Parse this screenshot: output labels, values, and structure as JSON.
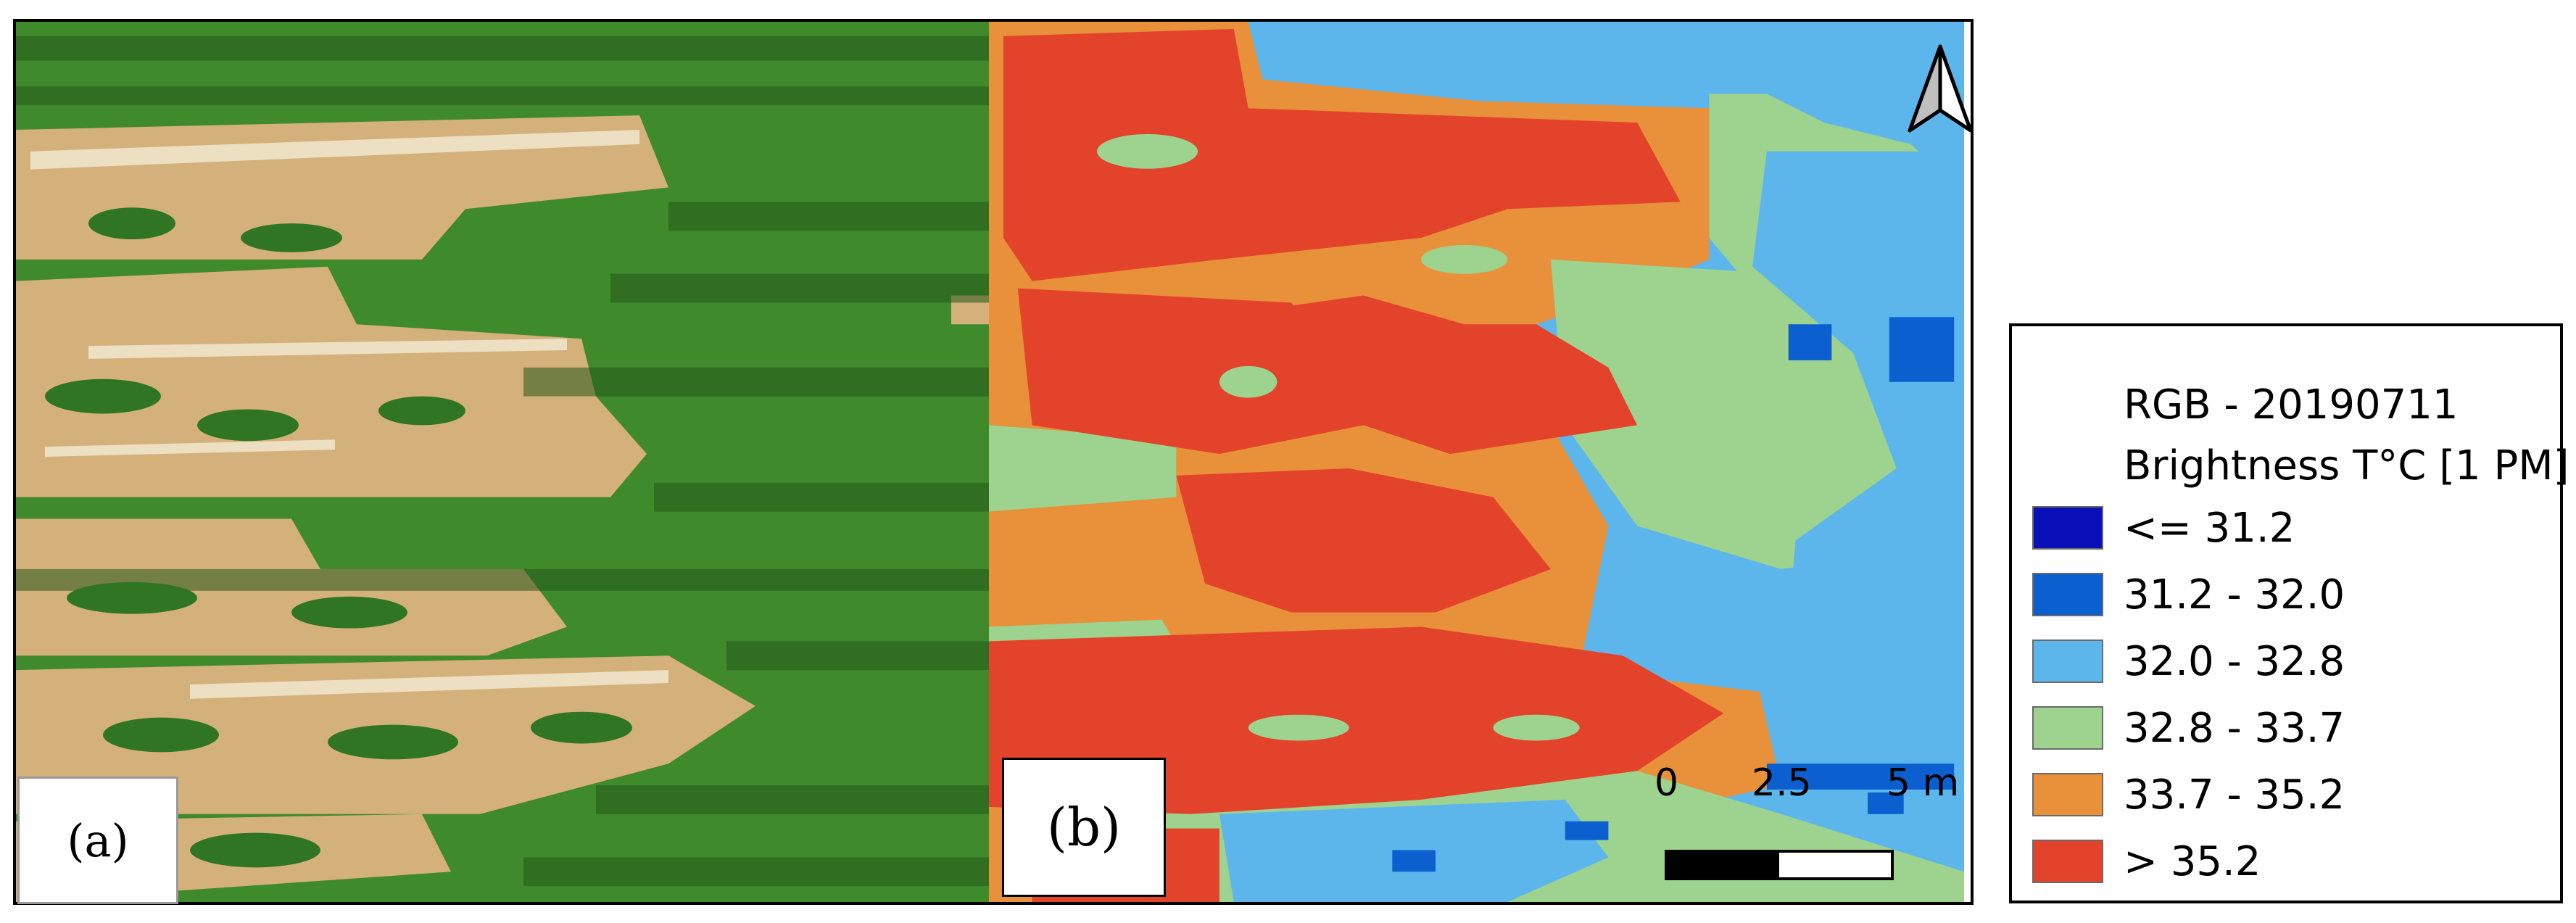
{
  "panels": {
    "a": {
      "label": "(a)"
    },
    "b": {
      "label": "(b)"
    }
  },
  "scalebar": {
    "ticks": [
      "0",
      "2.5",
      "5 m"
    ]
  },
  "legend": {
    "title_line1": "RGB - 20190711",
    "title_line2": "Brightness T°C [1 PM]",
    "classes": [
      {
        "label": "<= 31.2",
        "color": "#0a10b8"
      },
      {
        "label": "31.2 - 32.0",
        "color": "#0b5fce"
      },
      {
        "label": "32.0 - 32.8",
        "color": "#5cb6eb"
      },
      {
        "label": "32.8 - 33.7",
        "color": "#9dd38f"
      },
      {
        "label": "33.7 - 35.2",
        "color": "#e8913a"
      },
      {
        "label": "> 35.2",
        "color": "#e3432a"
      }
    ]
  },
  "colors": {
    "soil": "#d4b07a",
    "crop": "#3f8a2a",
    "crop_dark": "#24581a",
    "frame": "#000000"
  }
}
